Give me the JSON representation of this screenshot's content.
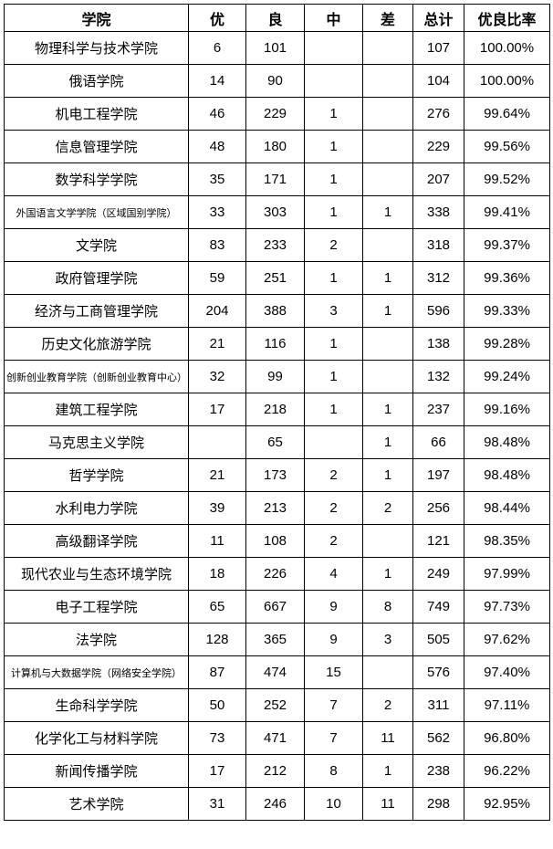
{
  "colors": {
    "border": "#000000",
    "text": "#000000",
    "background": "#ffffff"
  },
  "table": {
    "columns": [
      "学院",
      "优",
      "良",
      "中",
      "差",
      "总计",
      "优良比率"
    ],
    "rows": [
      [
        "物理科学与技术学院",
        "6",
        "101",
        "",
        "",
        "107",
        "100.00%"
      ],
      [
        "俄语学院",
        "14",
        "90",
        "",
        "",
        "104",
        "100.00%"
      ],
      [
        "机电工程学院",
        "46",
        "229",
        "1",
        "",
        "276",
        "99.64%"
      ],
      [
        "信息管理学院",
        "48",
        "180",
        "1",
        "",
        "229",
        "99.56%"
      ],
      [
        "数学科学学院",
        "35",
        "171",
        "1",
        "",
        "207",
        "99.52%"
      ],
      [
        "外国语言文学学院（区域国别学院）",
        "33",
        "303",
        "1",
        "1",
        "338",
        "99.41%"
      ],
      [
        "文学院",
        "83",
        "233",
        "2",
        "",
        "318",
        "99.37%"
      ],
      [
        "政府管理学院",
        "59",
        "251",
        "1",
        "1",
        "312",
        "99.36%"
      ],
      [
        "经济与工商管理学院",
        "204",
        "388",
        "3",
        "1",
        "596",
        "99.33%"
      ],
      [
        "历史文化旅游学院",
        "21",
        "116",
        "1",
        "",
        "138",
        "99.28%"
      ],
      [
        "创新创业教育学院（创新创业教育中心）",
        "32",
        "99",
        "1",
        "",
        "132",
        "99.24%"
      ],
      [
        "建筑工程学院",
        "17",
        "218",
        "1",
        "1",
        "237",
        "99.16%"
      ],
      [
        "马克思主义学院",
        "",
        "65",
        "",
        "1",
        "66",
        "98.48%"
      ],
      [
        "哲学学院",
        "21",
        "173",
        "2",
        "1",
        "197",
        "98.48%"
      ],
      [
        "水利电力学院",
        "39",
        "213",
        "2",
        "2",
        "256",
        "98.44%"
      ],
      [
        "高级翻译学院",
        "11",
        "108",
        "2",
        "",
        "121",
        "98.35%"
      ],
      [
        "现代农业与生态环境学院",
        "18",
        "226",
        "4",
        "1",
        "249",
        "97.99%"
      ],
      [
        "电子工程学院",
        "65",
        "667",
        "9",
        "8",
        "749",
        "97.73%"
      ],
      [
        "法学院",
        "128",
        "365",
        "9",
        "3",
        "505",
        "97.62%"
      ],
      [
        "计算机与大数据学院（网络安全学院）",
        "87",
        "474",
        "15",
        "",
        "576",
        "97.40%"
      ],
      [
        "生命科学学院",
        "50",
        "252",
        "7",
        "2",
        "311",
        "97.11%"
      ],
      [
        "化学化工与材料学院",
        "73",
        "471",
        "7",
        "11",
        "562",
        "96.80%"
      ],
      [
        "新闻传播学院",
        "17",
        "212",
        "8",
        "1",
        "238",
        "96.22%"
      ],
      [
        "艺术学院",
        "31",
        "246",
        "10",
        "11",
        "298",
        "92.95%"
      ]
    ]
  }
}
